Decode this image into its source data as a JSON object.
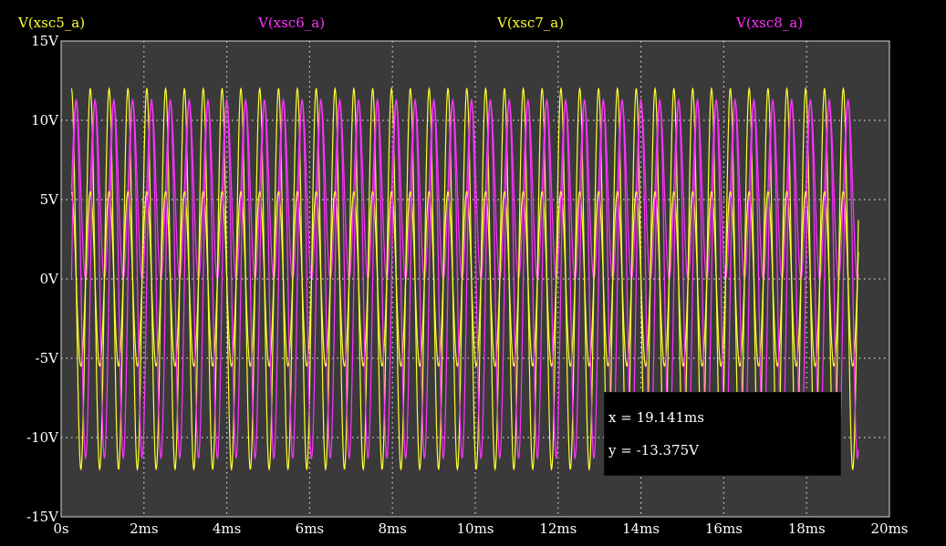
{
  "chart_data": {
    "type": "line",
    "xlabel": "",
    "ylabel": "",
    "xlim": [
      0,
      20
    ],
    "ylim": [
      -15,
      15
    ],
    "xticks": [
      "0s",
      "2ms",
      "4ms",
      "6ms",
      "8ms",
      "10ms",
      "12ms",
      "14ms",
      "16ms",
      "18ms",
      "20ms"
    ],
    "yticks": [
      "15V",
      "10V",
      "5V",
      "0V",
      "-5V",
      "-10V",
      "-15V"
    ],
    "grid": true,
    "series": [
      {
        "name": "V(xsc5_a)",
        "color": "#ffff33",
        "kind": "sine",
        "amplitude": 12,
        "offset": 0,
        "frequency_khz": 2.2,
        "phase_deg": 90,
        "x_start": 0.25,
        "x_end": 19.25
      },
      {
        "name": "V(xsc6_a)",
        "color": "#ff33ff",
        "kind": "sine",
        "amplitude": 5.6,
        "offset": 5.6,
        "frequency_khz": 2.2,
        "phase_deg": 0,
        "x_start": 0.25,
        "x_end": 19.25
      },
      {
        "name": "V(xsc7_a)",
        "color": "#ffff33",
        "kind": "sine",
        "amplitude": 5.5,
        "offset": 0,
        "frequency_khz": 2.2,
        "phase_deg": 90,
        "x_start": 0.25,
        "x_end": 19.25
      },
      {
        "name": "V(xsc8_a)",
        "color": "#ff33ff",
        "kind": "sine",
        "amplitude": 11.3,
        "offset": 0,
        "frequency_khz": 2.2,
        "phase_deg": 0,
        "x_start": 0.25,
        "x_end": 19.25
      }
    ],
    "cursor": {
      "x_label": "x = 19.141ms",
      "y_label": "y = -13.375V"
    }
  },
  "colors": {
    "background": "#000000",
    "plot_area": "#3a3a3a",
    "grid": "#d8d8d8",
    "tick_text": "#ffffff"
  }
}
